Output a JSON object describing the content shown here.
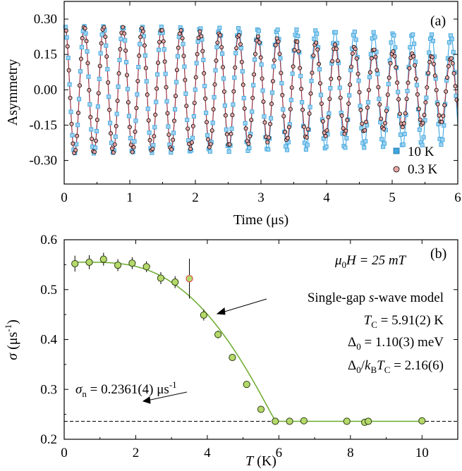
{
  "colors": {
    "cyan": "#3ea6e0",
    "red": "#b0303a",
    "ptfill": "#e8a6a6",
    "green": "#b5d96a",
    "green_edge": "#2a3e12",
    "green_line": "#6aaa2a",
    "outlier_edge": "#e25050",
    "axis": "#000000"
  },
  "chart_data": [
    {
      "type": "scatter",
      "panel_label": "(a)",
      "xlabel": "Time (μs)",
      "ylabel": "Asymmetry",
      "xlim": [
        0,
        6
      ],
      "ylim": [
        -0.4,
        0.375
      ],
      "xticks": [
        "0",
        "1",
        "2",
        "3",
        "4",
        "5",
        "6"
      ],
      "yticks": [
        "0.30",
        "0.15",
        "0.00",
        "-0.15",
        "-0.30"
      ],
      "legend_position": "bottom-right",
      "series": [
        {
          "name": "10 K",
          "marker": "square",
          "model": {
            "amplitude": 0.27,
            "frequency_MHz": 3.4,
            "phase_deg": -15,
            "gaussian_rate": 0.095
          }
        },
        {
          "name": "0.3 K",
          "marker": "circle",
          "model": {
            "amplitude": 0.27,
            "frequency_MHz": 3.4,
            "phase_deg": -15,
            "gaussian_rate": 0.2
          }
        }
      ]
    },
    {
      "type": "scatter",
      "panel_label": "(b)",
      "xlabel_italic": "T",
      "xlabel": " (K)",
      "ylabel_italic": "σ",
      "ylabel": " (μs",
      "ylabel_sup": "-1",
      "ylabel_tail": ")",
      "xlim": [
        0,
        11
      ],
      "ylim": [
        0.2,
        0.6
      ],
      "xticks": [
        "0",
        "2",
        "4",
        "6",
        "8",
        "10"
      ],
      "yticks": [
        "0.2",
        "0.3",
        "0.4",
        "0.5",
        "0.6"
      ],
      "points": [
        {
          "x": 0.3,
          "y": 0.552,
          "err": 0.016
        },
        {
          "x": 0.7,
          "y": 0.555,
          "err": 0.014
        },
        {
          "x": 1.1,
          "y": 0.561,
          "err": 0.013
        },
        {
          "x": 1.5,
          "y": 0.549,
          "err": 0.012
        },
        {
          "x": 1.9,
          "y": 0.553,
          "err": 0.012
        },
        {
          "x": 2.3,
          "y": 0.546,
          "err": 0.011
        },
        {
          "x": 2.7,
          "y": 0.523,
          "err": 0.012
        },
        {
          "x": 3.1,
          "y": 0.515,
          "err": 0.012
        },
        {
          "x": 3.9,
          "y": 0.449,
          "err": 0.011
        },
        {
          "x": 4.3,
          "y": 0.41,
          "err": 0.008
        },
        {
          "x": 4.7,
          "y": 0.364,
          "err": 0.006
        },
        {
          "x": 5.1,
          "y": 0.31,
          "err": 0.005
        },
        {
          "x": 5.5,
          "y": 0.26,
          "err": 0.004
        },
        {
          "x": 5.9,
          "y": 0.236,
          "err": 0.003
        },
        {
          "x": 6.3,
          "y": 0.236,
          "err": 0.002
        },
        {
          "x": 6.7,
          "y": 0.237,
          "err": 0.002
        },
        {
          "x": 7.9,
          "y": 0.236,
          "err": 0.002
        },
        {
          "x": 8.4,
          "y": 0.234,
          "err": 0.002
        },
        {
          "x": 8.5,
          "y": 0.236,
          "err": 0.002
        },
        {
          "x": 10.0,
          "y": 0.237,
          "err": 0.002
        }
      ],
      "outlier": {
        "x": 3.5,
        "y": 0.522,
        "err": 0.04
      },
      "model": {
        "sigma0": 0.555,
        "sigma_n": 0.2361,
        "Tc": 5.91,
        "delta_over_kTc": 2.16
      },
      "sigma_n_line": 0.2361,
      "annotations": {
        "field_mu": "μ",
        "field_sub": "0",
        "field_rest": "H = 25 mT",
        "model_line_a": "Single-gap ",
        "model_line_s": "s",
        "model_line_b": "-wave model",
        "tc_T": "T",
        "tc_sub": "C",
        "tc_rest": " = 5.91(2) K",
        "delta_sym": "Δ",
        "delta_sub": "0",
        "delta_rest": " = 1.10(3) meV",
        "ratio_sym": "Δ",
        "ratio_sub": "0",
        "ratio_slash": "/",
        "ratio_k": "k",
        "ratio_ksub": "B",
        "ratio_T": "T",
        "ratio_Tsub": "C",
        "ratio_rest": " = 2.16(6)",
        "sn_sym": "σ",
        "sn_sub": "n",
        "sn_rest": " = 0.2361(4) μs",
        "sn_sup": "-1"
      }
    }
  ]
}
